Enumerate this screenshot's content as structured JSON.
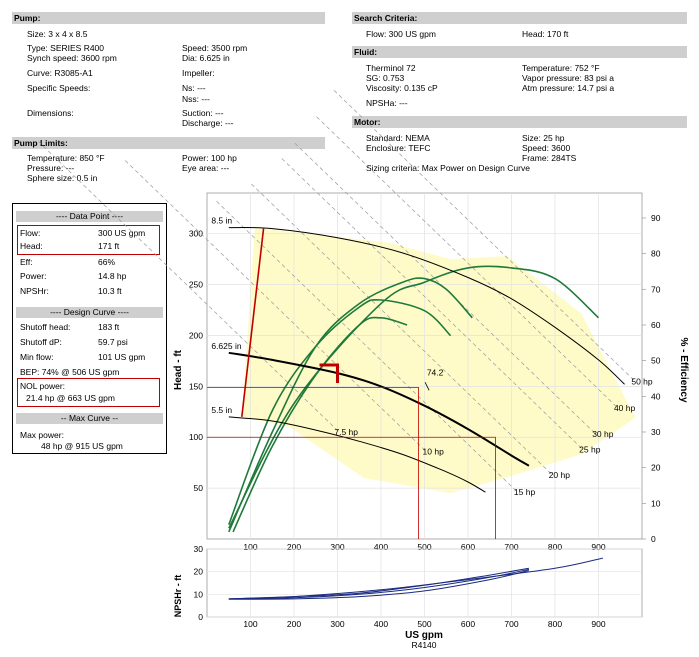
{
  "pump": {
    "header": "Pump:",
    "size": "Size:  3 x 4 x 8.5",
    "type": "Type:  SERIES R400",
    "synch_speed": "Synch speed:  3600 rpm",
    "curve": "Curve:  R3085-A1",
    "specific_speeds": "Specific Speeds:",
    "dimensions": "Dimensions:",
    "speed": "Speed:  3500 rpm",
    "dia": "Dia:  6.625 in",
    "impeller": "Impeller:",
    "ns": "Ns:  ---",
    "nss": "Nss:  ---",
    "suction": "Suction:  ---",
    "discharge": "Discharge:  ---"
  },
  "pump_limits": {
    "header": "Pump Limits:",
    "temperature": "Temperature:  850 °F",
    "pressure": "Pressure:  ---",
    "sphere_size": "Sphere size:  0.5 in",
    "power": "Power:  100 hp",
    "eye_area": "Eye area:  ---"
  },
  "search_criteria": {
    "header": "Search Criteria:",
    "flow": "Flow:  300 US gpm",
    "head": "Head:  170 ft"
  },
  "fluid": {
    "header": "Fluid:",
    "name": "Therminol 72",
    "sg": "SG:  0.753",
    "viscosity": "Viscosity:  0.135 cP",
    "npsha": "NPSHa:  ---",
    "temperature": "Temperature:  752 °F",
    "vapor_pressure": "Vapor pressure:  83 psi a",
    "atm_pressure": "Atm pressure:  14.7 psi a"
  },
  "motor": {
    "header": "Motor:",
    "standard": "Standard:  NEMA",
    "enclosure": "Enclosure:  TEFC",
    "size": "Size:  25 hp",
    "speed": "Speed:  3600",
    "frame": "Frame:  284TS",
    "sizing": "Sizing criteria:  Max Power on Design Curve"
  },
  "data_point": {
    "header": "---- Data Point ----",
    "flow_label": "Flow:",
    "flow_value": "300 US gpm",
    "head_label": "Head:",
    "head_value": "171 ft",
    "eff_label": "Eff:",
    "eff_value": "66%",
    "power_label": "Power:",
    "power_value": "14.8 hp",
    "npshr_label": "NPSHr:",
    "npshr_value": "10.3 ft"
  },
  "design_curve": {
    "header": "---- Design Curve ----",
    "shutoff_head_label": "Shutoff head:",
    "shutoff_head_value": "183 ft",
    "shutoff_dp_label": "Shutoff dP:",
    "shutoff_dp_value": "59.7 psi",
    "min_flow_label": "Min flow:",
    "min_flow_value": "101 US gpm",
    "bep": "BEP:   74% @ 506 US gpm",
    "nol_label": "NOL power:",
    "nol_value": "21.4 hp @ 663 US gpm"
  },
  "max_curve": {
    "header": "-- Max Curve --",
    "max_power_label": "Max power:",
    "max_power_value": "48 hp @ 915 US gpm"
  },
  "colors": {
    "header_bg": "#cfcfcf",
    "red": "#c00000",
    "green": "#1f7a3a",
    "fill": "#fffbc8",
    "nav_blue": "#1a2a80"
  },
  "chart_data": [
    {
      "type": "line",
      "title": "",
      "xlabel": "US gpm",
      "ylabel": "Head - ft",
      "y2label": "% - Efficiency",
      "xlim": [
        0,
        1000
      ],
      "ylim": [
        0,
        340
      ],
      "y2lim": [
        0,
        97
      ],
      "x_ticks": [
        100,
        200,
        300,
        400,
        500,
        600,
        700,
        800,
        900
      ],
      "y_ticks": [
        50,
        100,
        150,
        200,
        250,
        300
      ],
      "y2_ticks": [
        0,
        10,
        20,
        30,
        40,
        50,
        60,
        70,
        80,
        90
      ],
      "grid": true,
      "impeller_curves": [
        {
          "name": "8.5 in",
          "x": [
            50,
            150,
            300,
            450,
            600,
            700,
            800,
            900,
            960
          ],
          "y": [
            306,
            305,
            296,
            281,
            257,
            236,
            208,
            176,
            152
          ]
        },
        {
          "name": "6.625 in",
          "x": [
            50,
            150,
            300,
            400,
            500,
            600,
            700,
            740
          ],
          "y": [
            183,
            176,
            163,
            150,
            131,
            108,
            82,
            72
          ]
        },
        {
          "name": "5.5 in",
          "x": [
            50,
            150,
            250,
            350,
            450,
            550,
            600,
            640
          ],
          "y": [
            120,
            116,
            107,
            96,
            83,
            66,
            56,
            46
          ]
        }
      ],
      "efficiency_curves_pct": [
        {
          "x": [
            50,
            150,
            250,
            350,
            400,
            500,
            560
          ],
          "y": [
            4,
            36,
            54,
            65,
            67,
            64,
            57
          ]
        },
        {
          "x": [
            50,
            150,
            250,
            350,
            450,
            500,
            550,
            610
          ],
          "y": [
            2,
            30,
            54,
            66,
            72,
            73,
            70,
            62
          ]
        },
        {
          "x": [
            50,
            200,
            400,
            500,
            600,
            700,
            800,
            900
          ],
          "y": [
            3,
            38,
            66,
            72,
            76,
            76,
            73,
            62
          ]
        },
        {
          "x": [
            60,
            150,
            250,
            350,
            400,
            460
          ],
          "y": [
            2,
            26,
            46,
            60,
            62,
            60
          ]
        }
      ],
      "power_lines": [
        {
          "label": "7.5 hp",
          "label_x": 320,
          "label_y": 102
        },
        {
          "label": "10 hp",
          "label_x": 520,
          "label_y": 83
        },
        {
          "label": "15 hp",
          "label_x": 730,
          "label_y": 43
        },
        {
          "label": "20 hp",
          "label_x": 810,
          "label_y": 60
        },
        {
          "label": "25 hp",
          "label_x": 880,
          "label_y": 85
        },
        {
          "label": "30 hp",
          "label_x": 910,
          "label_y": 100
        },
        {
          "label": "40 hp",
          "label_x": 960,
          "label_y": 126
        },
        {
          "label": "50 hp",
          "label_x": 1000,
          "label_y": 152
        }
      ],
      "design_point": {
        "flow": 300,
        "head": 171
      },
      "bep_label": "74.2",
      "bep_point": {
        "flow": 506,
        "head": 150
      },
      "reference_lines": [
        {
          "flow": 486,
          "head": 149
        },
        {
          "flow": 663,
          "head": 100
        }
      ],
      "min_flow_line": {
        "x": [
          80,
          130
        ],
        "y": [
          120,
          305
        ]
      },
      "operating_region": {
        "x": [
          110,
          420,
          560,
          690,
          860,
          985,
          860,
          700,
          560,
          360,
          190,
          80
        ],
        "y": [
          306,
          291,
          275,
          278,
          222,
          119,
          83,
          62,
          45,
          60,
          110,
          120
        ]
      }
    },
    {
      "type": "line",
      "xlabel": "US gpm",
      "ylabel": "NPSHr - ft",
      "xlim": [
        0,
        1000
      ],
      "ylim": [
        0,
        30
      ],
      "x_ticks": [
        100,
        200,
        300,
        400,
        500,
        600,
        700,
        800,
        900
      ],
      "y_ticks": [
        0,
        10,
        20,
        30
      ],
      "grid": true,
      "series": [
        {
          "x": [
            50,
            200,
            400,
            600,
            800,
            910
          ],
          "y": [
            8,
            9,
            12,
            16.5,
            21.5,
            26
          ]
        },
        {
          "x": [
            50,
            200,
            350,
            500,
            650,
            740
          ],
          "y": [
            8,
            8.5,
            10,
            13,
            17.5,
            21
          ]
        },
        {
          "x": [
            50,
            200,
            350,
            500,
            650,
            740
          ],
          "y": [
            7.8,
            8,
            9,
            11.5,
            16.5,
            20.5
          ]
        },
        {
          "x": [
            50,
            200,
            350,
            500,
            650,
            740
          ],
          "y": [
            8,
            9,
            10.5,
            14,
            18.5,
            21.5
          ]
        }
      ]
    }
  ],
  "footer_code": "R4140"
}
